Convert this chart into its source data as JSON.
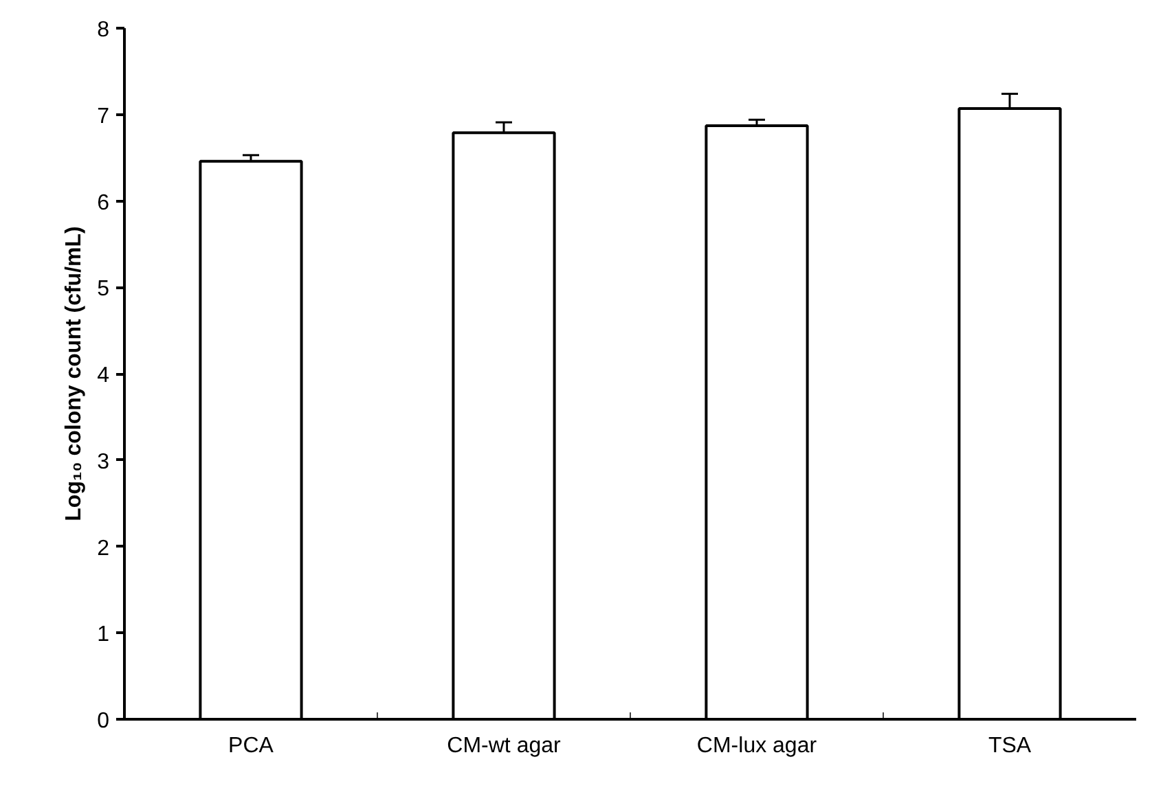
{
  "chart_data": {
    "type": "bar",
    "ylabel": "Log₁₀ colony count (cfu/mL)",
    "categories": [
      "PCA",
      "CM-wt agar",
      "CM-lux agar",
      "TSA"
    ],
    "values": [
      6.46,
      6.79,
      6.87,
      7.07
    ],
    "errors": [
      0.07,
      0.12,
      0.07,
      0.17
    ],
    "color": "#ffffff",
    "ylim": [
      0,
      8
    ],
    "yticks": [
      0,
      1,
      2,
      3,
      4,
      5,
      6,
      7,
      8
    ],
    "grid": false
  }
}
